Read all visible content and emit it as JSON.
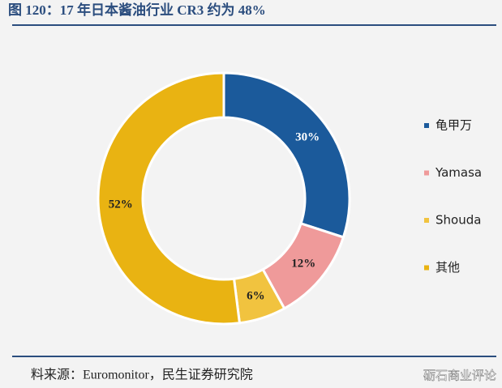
{
  "chart_data": {
    "type": "donut",
    "title": "图 120：17 年日本酱油行业 CR3 约为 48%",
    "source": "料来源：Euromonitor，民生证券研究院",
    "watermark": "砺石商业评论",
    "categories": [
      "龟甲万",
      "Yamasa",
      "Shouda",
      "其他"
    ],
    "values": [
      30,
      12,
      6,
      52
    ],
    "value_labels": [
      "30%",
      "12%",
      "6%",
      "52%"
    ],
    "colors": [
      "#1b5a9b",
      "#ef9a9a",
      "#f1c33f",
      "#e9b312"
    ],
    "legend": "right"
  }
}
